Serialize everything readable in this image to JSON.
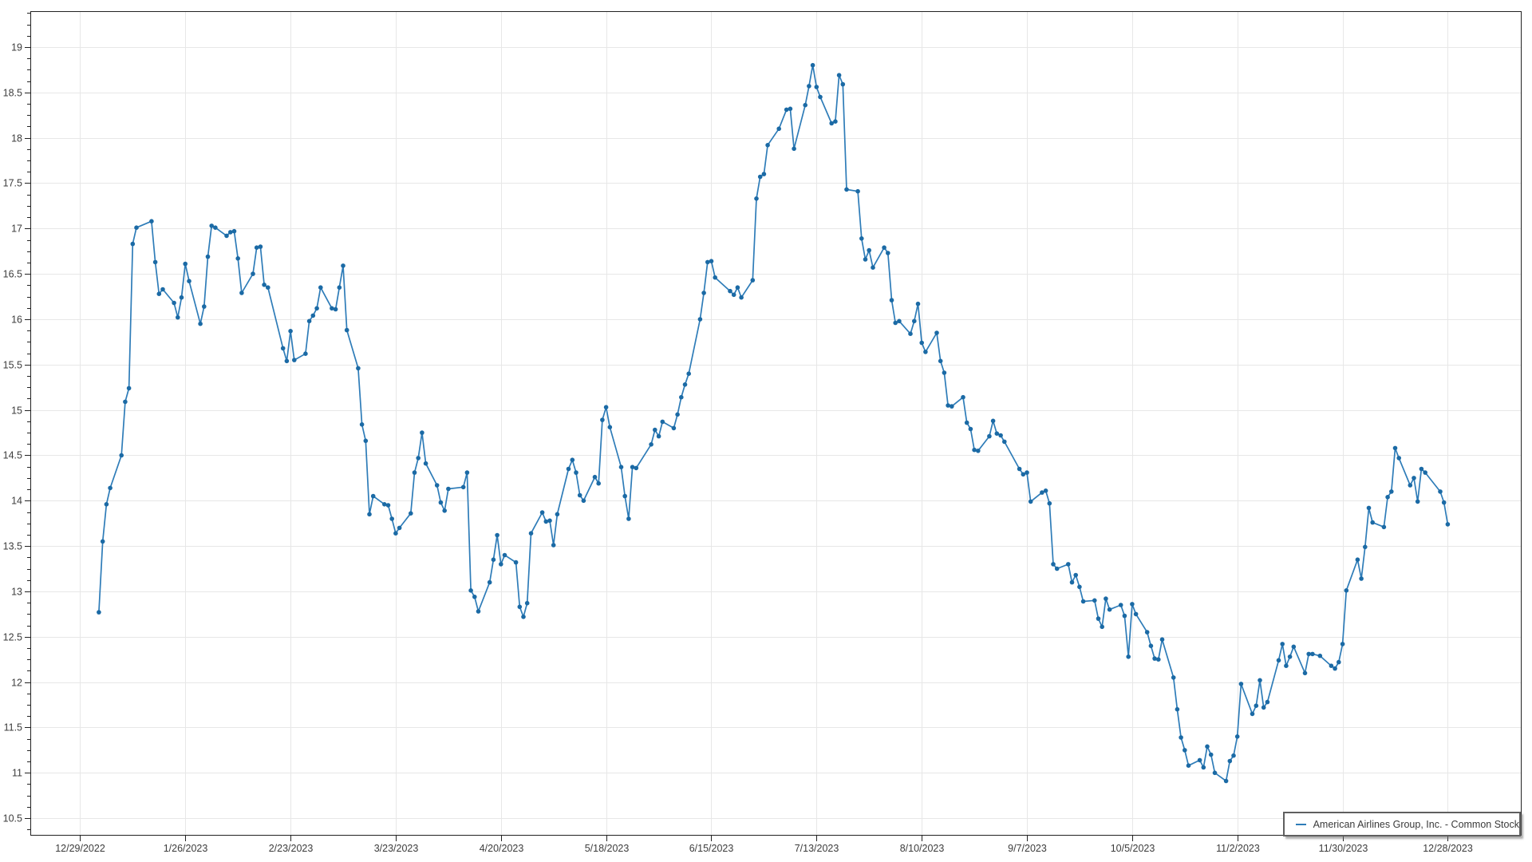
{
  "window": {
    "background": "#ffffff"
  },
  "legend": {
    "label": "American Airlines Group, Inc. - Common Stock",
    "position": "bottom-right"
  },
  "chart_data": {
    "type": "line",
    "title": "",
    "series": [
      {
        "name": "American Airlines Group, Inc. - Common Stock"
      }
    ],
    "grid": true,
    "marker": "circle",
    "colors": {
      "line": "#2e7cb8",
      "marker": "#1b6aa5",
      "grid": "#e7e7e7",
      "axis": "#222222",
      "tick_label": "#3c3c3c",
      "legend_border": "#5f5f5f",
      "background": "#ffffff"
    },
    "ylim": [
      10.32,
      19.4
    ],
    "y_major_step": 0.5,
    "y_minor_step": 0.125,
    "y_ticks": [
      10.5,
      11,
      11.5,
      12,
      12.5,
      13,
      13.5,
      14,
      14.5,
      15,
      15.5,
      16,
      16.5,
      17,
      17.5,
      18,
      18.5,
      19
    ],
    "x_ticks": [
      "2022-12-29",
      "2023-01-26",
      "2023-02-23",
      "2023-03-23",
      "2023-04-20",
      "2023-05-18",
      "2023-06-15",
      "2023-07-13",
      "2023-08-10",
      "2023-09-07",
      "2023-10-05",
      "2023-11-02",
      "2023-11-30",
      "2023-12-28"
    ],
    "x_tick_labels": [
      "12/29/2022",
      "1/26/2023",
      "2/23/2023",
      "3/23/2023",
      "4/20/2023",
      "5/18/2023",
      "6/15/2023",
      "7/13/2023",
      "8/10/2023",
      "9/7/2023",
      "10/5/2023",
      "11/2/2023",
      "11/30/2023",
      "12/28/2023"
    ],
    "dates": [
      "2023-01-03",
      "2023-01-04",
      "2023-01-05",
      "2023-01-06",
      "2023-01-09",
      "2023-01-10",
      "2023-01-11",
      "2023-01-12",
      "2023-01-13",
      "2023-01-17",
      "2023-01-18",
      "2023-01-19",
      "2023-01-20",
      "2023-01-23",
      "2023-01-24",
      "2023-01-25",
      "2023-01-26",
      "2023-01-27",
      "2023-01-30",
      "2023-01-31",
      "2023-02-01",
      "2023-02-02",
      "2023-02-03",
      "2023-02-06",
      "2023-02-07",
      "2023-02-08",
      "2023-02-09",
      "2023-02-10",
      "2023-02-13",
      "2023-02-14",
      "2023-02-15",
      "2023-02-16",
      "2023-02-17",
      "2023-02-21",
      "2023-02-22",
      "2023-02-23",
      "2023-02-24",
      "2023-02-27",
      "2023-02-28",
      "2023-03-01",
      "2023-03-02",
      "2023-03-03",
      "2023-03-06",
      "2023-03-07",
      "2023-03-08",
      "2023-03-09",
      "2023-03-10",
      "2023-03-13",
      "2023-03-14",
      "2023-03-15",
      "2023-03-16",
      "2023-03-17",
      "2023-03-20",
      "2023-03-21",
      "2023-03-22",
      "2023-03-23",
      "2023-03-24",
      "2023-03-27",
      "2023-03-28",
      "2023-03-29",
      "2023-03-30",
      "2023-03-31",
      "2023-04-03",
      "2023-04-04",
      "2023-04-05",
      "2023-04-06",
      "2023-04-10",
      "2023-04-11",
      "2023-04-12",
      "2023-04-13",
      "2023-04-14",
      "2023-04-17",
      "2023-04-18",
      "2023-04-19",
      "2023-04-20",
      "2023-04-21",
      "2023-04-24",
      "2023-04-25",
      "2023-04-26",
      "2023-04-27",
      "2023-04-28",
      "2023-05-01",
      "2023-05-02",
      "2023-05-03",
      "2023-05-04",
      "2023-05-05",
      "2023-05-08",
      "2023-05-09",
      "2023-05-10",
      "2023-05-11",
      "2023-05-12",
      "2023-05-15",
      "2023-05-16",
      "2023-05-17",
      "2023-05-18",
      "2023-05-19",
      "2023-05-22",
      "2023-05-23",
      "2023-05-24",
      "2023-05-25",
      "2023-05-26",
      "2023-05-30",
      "2023-05-31",
      "2023-06-01",
      "2023-06-02",
      "2023-06-05",
      "2023-06-06",
      "2023-06-07",
      "2023-06-08",
      "2023-06-09",
      "2023-06-12",
      "2023-06-13",
      "2023-06-14",
      "2023-06-15",
      "2023-06-16",
      "2023-06-20",
      "2023-06-21",
      "2023-06-22",
      "2023-06-23",
      "2023-06-26",
      "2023-06-27",
      "2023-06-28",
      "2023-06-29",
      "2023-06-30",
      "2023-07-03",
      "2023-07-05",
      "2023-07-06",
      "2023-07-07",
      "2023-07-10",
      "2023-07-11",
      "2023-07-12",
      "2023-07-13",
      "2023-07-14",
      "2023-07-17",
      "2023-07-18",
      "2023-07-19",
      "2023-07-20",
      "2023-07-21",
      "2023-07-24",
      "2023-07-25",
      "2023-07-26",
      "2023-07-27",
      "2023-07-28",
      "2023-07-31",
      "2023-08-01",
      "2023-08-02",
      "2023-08-03",
      "2023-08-04",
      "2023-08-07",
      "2023-08-08",
      "2023-08-09",
      "2023-08-10",
      "2023-08-11",
      "2023-08-14",
      "2023-08-15",
      "2023-08-16",
      "2023-08-17",
      "2023-08-18",
      "2023-08-21",
      "2023-08-22",
      "2023-08-23",
      "2023-08-24",
      "2023-08-25",
      "2023-08-28",
      "2023-08-29",
      "2023-08-30",
      "2023-08-31",
      "2023-09-01",
      "2023-09-05",
      "2023-09-06",
      "2023-09-07",
      "2023-09-08",
      "2023-09-11",
      "2023-09-12",
      "2023-09-13",
      "2023-09-14",
      "2023-09-15",
      "2023-09-18",
      "2023-09-19",
      "2023-09-20",
      "2023-09-21",
      "2023-09-22",
      "2023-09-25",
      "2023-09-26",
      "2023-09-27",
      "2023-09-28",
      "2023-09-29",
      "2023-10-02",
      "2023-10-03",
      "2023-10-04",
      "2023-10-05",
      "2023-10-06",
      "2023-10-09",
      "2023-10-10",
      "2023-10-11",
      "2023-10-12",
      "2023-10-13",
      "2023-10-16",
      "2023-10-17",
      "2023-10-18",
      "2023-10-19",
      "2023-10-20",
      "2023-10-23",
      "2023-10-24",
      "2023-10-25",
      "2023-10-26",
      "2023-10-27",
      "2023-10-30",
      "2023-10-31",
      "2023-11-01",
      "2023-11-02",
      "2023-11-03",
      "2023-11-06",
      "2023-11-07",
      "2023-11-08",
      "2023-11-09",
      "2023-11-10",
      "2023-11-13",
      "2023-11-14",
      "2023-11-15",
      "2023-11-16",
      "2023-11-17",
      "2023-11-20",
      "2023-11-21",
      "2023-11-22",
      "2023-11-24",
      "2023-11-27",
      "2023-11-28",
      "2023-11-29",
      "2023-11-30",
      "2023-12-01",
      "2023-12-04",
      "2023-12-05",
      "2023-12-06",
      "2023-12-07",
      "2023-12-08",
      "2023-12-11",
      "2023-12-12",
      "2023-12-13",
      "2023-12-14",
      "2023-12-15",
      "2023-12-18",
      "2023-12-19",
      "2023-12-20",
      "2023-12-21",
      "2023-12-22",
      "2023-12-26",
      "2023-12-27",
      "2023-12-28"
    ],
    "values": [
      12.77,
      13.55,
      13.96,
      14.14,
      14.5,
      15.09,
      15.24,
      16.83,
      17.01,
      17.08,
      16.63,
      16.28,
      16.33,
      16.18,
      16.02,
      16.24,
      16.61,
      16.42,
      15.95,
      16.14,
      16.69,
      17.03,
      17.01,
      16.92,
      16.96,
      16.97,
      16.67,
      16.29,
      16.5,
      16.79,
      16.8,
      16.38,
      16.35,
      15.68,
      15.54,
      15.87,
      15.55,
      15.62,
      15.98,
      16.04,
      16.12,
      16.35,
      16.12,
      16.11,
      16.35,
      16.59,
      15.88,
      15.46,
      14.84,
      14.66,
      13.85,
      14.05,
      13.96,
      13.95,
      13.8,
      13.64,
      13.7,
      13.86,
      14.31,
      14.47,
      14.75,
      14.41,
      14.17,
      13.98,
      13.89,
      14.13,
      14.15,
      14.31,
      13.01,
      12.94,
      12.78,
      13.1,
      13.35,
      13.62,
      13.3,
      13.4,
      13.32,
      12.83,
      12.72,
      12.87,
      13.64,
      13.87,
      13.77,
      13.78,
      13.51,
      13.85,
      14.35,
      14.45,
      14.31,
      14.06,
      14.0,
      14.26,
      14.19,
      14.89,
      15.03,
      14.81,
      14.37,
      14.05,
      13.8,
      14.37,
      14.36,
      14.62,
      14.78,
      14.71,
      14.87,
      14.8,
      14.95,
      15.14,
      15.28,
      15.4,
      16.0,
      16.29,
      16.63,
      16.64,
      16.46,
      16.31,
      16.27,
      16.35,
      16.24,
      16.43,
      17.33,
      17.57,
      17.6,
      17.92,
      18.1,
      18.31,
      18.32,
      17.88,
      18.36,
      18.57,
      18.8,
      18.56,
      18.45,
      18.16,
      18.18,
      18.69,
      18.59,
      17.43,
      17.41,
      16.89,
      16.66,
      16.76,
      16.57,
      16.79,
      16.73,
      16.21,
      15.96,
      15.98,
      15.84,
      15.98,
      16.17,
      15.74,
      15.64,
      15.85,
      15.54,
      15.41,
      15.05,
      15.04,
      15.14,
      14.86,
      14.79,
      14.56,
      14.55,
      14.71,
      14.88,
      14.74,
      14.72,
      14.65,
      14.35,
      14.29,
      14.31,
      13.99,
      14.09,
      14.11,
      13.97,
      13.3,
      13.25,
      13.3,
      13.1,
      13.18,
      13.05,
      12.89,
      12.9,
      12.7,
      12.61,
      12.92,
      12.8,
      12.85,
      12.73,
      12.28,
      12.86,
      12.75,
      12.55,
      12.4,
      12.26,
      12.25,
      12.47,
      12.05,
      11.7,
      11.39,
      11.25,
      11.08,
      11.14,
      11.06,
      11.29,
      11.2,
      11.0,
      10.91,
      11.13,
      11.19,
      11.4,
      11.98,
      11.65,
      11.74,
      12.02,
      11.72,
      11.78,
      12.24,
      12.42,
      12.18,
      12.28,
      12.39,
      12.1,
      12.31,
      12.31,
      12.29,
      12.18,
      12.15,
      12.22,
      12.42,
      13.01,
      13.35,
      13.14,
      13.49,
      13.92,
      13.76,
      13.71,
      14.04,
      14.1,
      14.58,
      14.47,
      14.17,
      14.25,
      13.99,
      14.35,
      14.31,
      14.1,
      13.98,
      13.74
    ]
  }
}
